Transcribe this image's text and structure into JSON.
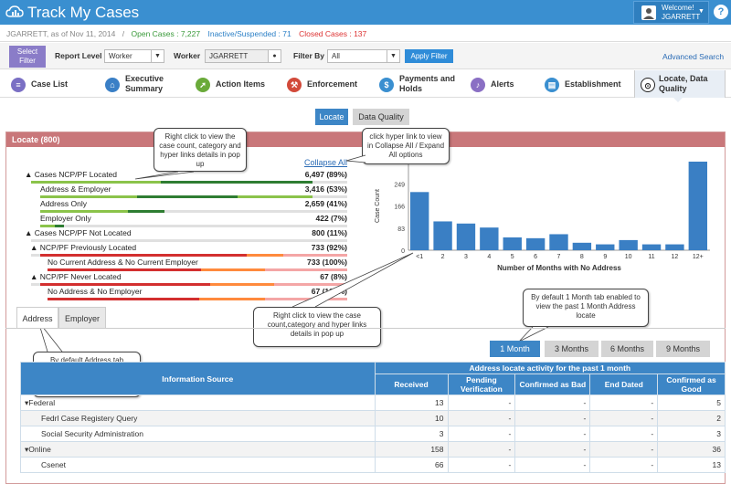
{
  "app": {
    "title": "Track My Cases",
    "welcome": "Welcome!",
    "user": "JGARRETT",
    "help": "?"
  },
  "info": {
    "as_of": "JGARRETT, as of Nov 11, 2014",
    "sep": "/",
    "open": "Open Cases : 7,227",
    "inactive": "Inactive/Suspended : 71",
    "closed": "Closed Cases : 137"
  },
  "filters": {
    "select_filter": "Select Filter",
    "report_level_label": "Report Level",
    "report_level_value": "Worker",
    "worker_label": "Worker",
    "worker_value": "JGARRETT",
    "filter_by_label": "Filter By",
    "filter_by_value": "All",
    "apply": "Apply Filter",
    "advanced": "Advanced Search"
  },
  "nav": [
    {
      "label": "Case List",
      "color": "#7a6fc4",
      "icon": "≡"
    },
    {
      "label": "Executive Summary",
      "color": "#3a7fc6",
      "icon": "⌂"
    },
    {
      "label": "Action Items",
      "color": "#6aaa3a",
      "icon": "➚"
    },
    {
      "label": "Enforcement",
      "color": "#d24a3a",
      "icon": "⚒"
    },
    {
      "label": "Payments and Holds",
      "color": "#3a8fd0",
      "icon": "$"
    },
    {
      "label": "Alerts",
      "color": "#8a6fc4",
      "icon": "♪"
    },
    {
      "label": "Establishment",
      "color": "#3a8fd0",
      "icon": "▤"
    },
    {
      "label": "Locate, Data Quality",
      "color": "#222",
      "icon": "⊙"
    }
  ],
  "subtabs": {
    "locate": "Locate",
    "dq": "Data Quality"
  },
  "panel": {
    "title": "Locate (800)",
    "collapse_all": "Collapse All"
  },
  "tree": [
    {
      "label": "Cases NCP/PF Located",
      "value": "6,497 (89%)",
      "toggle": "▲"
    },
    {
      "label": "Address & Employer",
      "value": "3,416 (53%)",
      "toggle": ""
    },
    {
      "label": "Address Only",
      "value": "2,659 (41%)",
      "toggle": ""
    },
    {
      "label": "Employer Only",
      "value": "422 (7%)",
      "toggle": ""
    },
    {
      "label": "Cases NCP/PF Not Located",
      "value": "800 (11%)",
      "toggle": "▲"
    },
    {
      "label": "NCP/PF Previously Located",
      "value": "733 (92%)",
      "toggle": "▲"
    },
    {
      "label": "No Current Address & No Current Employer",
      "value": "733 (100%)",
      "toggle": ""
    },
    {
      "label": "NCP/PF Never Located",
      "value": "67 (8%)",
      "toggle": "▲"
    },
    {
      "label": "No Address & No Employer",
      "value": "67 (100%)",
      "toggle": ""
    }
  ],
  "chart_data": {
    "type": "bar",
    "categories": [
      "<1",
      "2",
      "3",
      "4",
      "5",
      "6",
      "7",
      "8",
      "9",
      "10",
      "11",
      "12",
      "12+"
    ],
    "values": [
      218,
      108,
      100,
      85,
      48,
      45,
      60,
      28,
      22,
      38,
      22,
      22,
      332
    ],
    "xlabel": "Number of Months with No Address",
    "ylabel": "Case Count",
    "yticks": [
      0,
      83,
      166,
      249
    ],
    "ylim": [
      0,
      332
    ],
    "color": "#3a7fc4"
  },
  "callouts": {
    "c1": "Right click to view the case count, category and hyper links details in pop up",
    "c2": "click hyper link to view in Collapse All / Expand All options",
    "c3": "Right click to view the case count,category and hyper links details in pop up",
    "c4": "By default 1 Month tab enabled to view the past 1 Month Address locate",
    "c5": "By default Address tab enabled to view the details in grid section"
  },
  "detail_tabs": {
    "address": "Address",
    "employer": "Employer"
  },
  "months": [
    "1 Month",
    "3 Months",
    "6 Months",
    "9 Months"
  ],
  "grid": {
    "group_header": "Address locate activity for the past 1 month",
    "col_source": "Information Source",
    "cols": [
      "Received",
      "Pending Verification",
      "Confirmed as Bad",
      "End Dated",
      "Confirmed as Good"
    ],
    "rows": [
      {
        "name": "Federal",
        "group": true,
        "vals": [
          "13",
          "-",
          "-",
          "-",
          "5"
        ]
      },
      {
        "name": "Fedrl Case Registery Query",
        "group": false,
        "vals": [
          "10",
          "-",
          "-",
          "-",
          "2"
        ]
      },
      {
        "name": "Social Security Administration",
        "group": false,
        "vals": [
          "3",
          "-",
          "-",
          "-",
          "3"
        ]
      },
      {
        "name": "Online",
        "group": true,
        "vals": [
          "158",
          "-",
          "-",
          "-",
          "36"
        ]
      },
      {
        "name": "Csenet",
        "group": false,
        "vals": [
          "66",
          "-",
          "-",
          "-",
          "13"
        ]
      }
    ]
  }
}
